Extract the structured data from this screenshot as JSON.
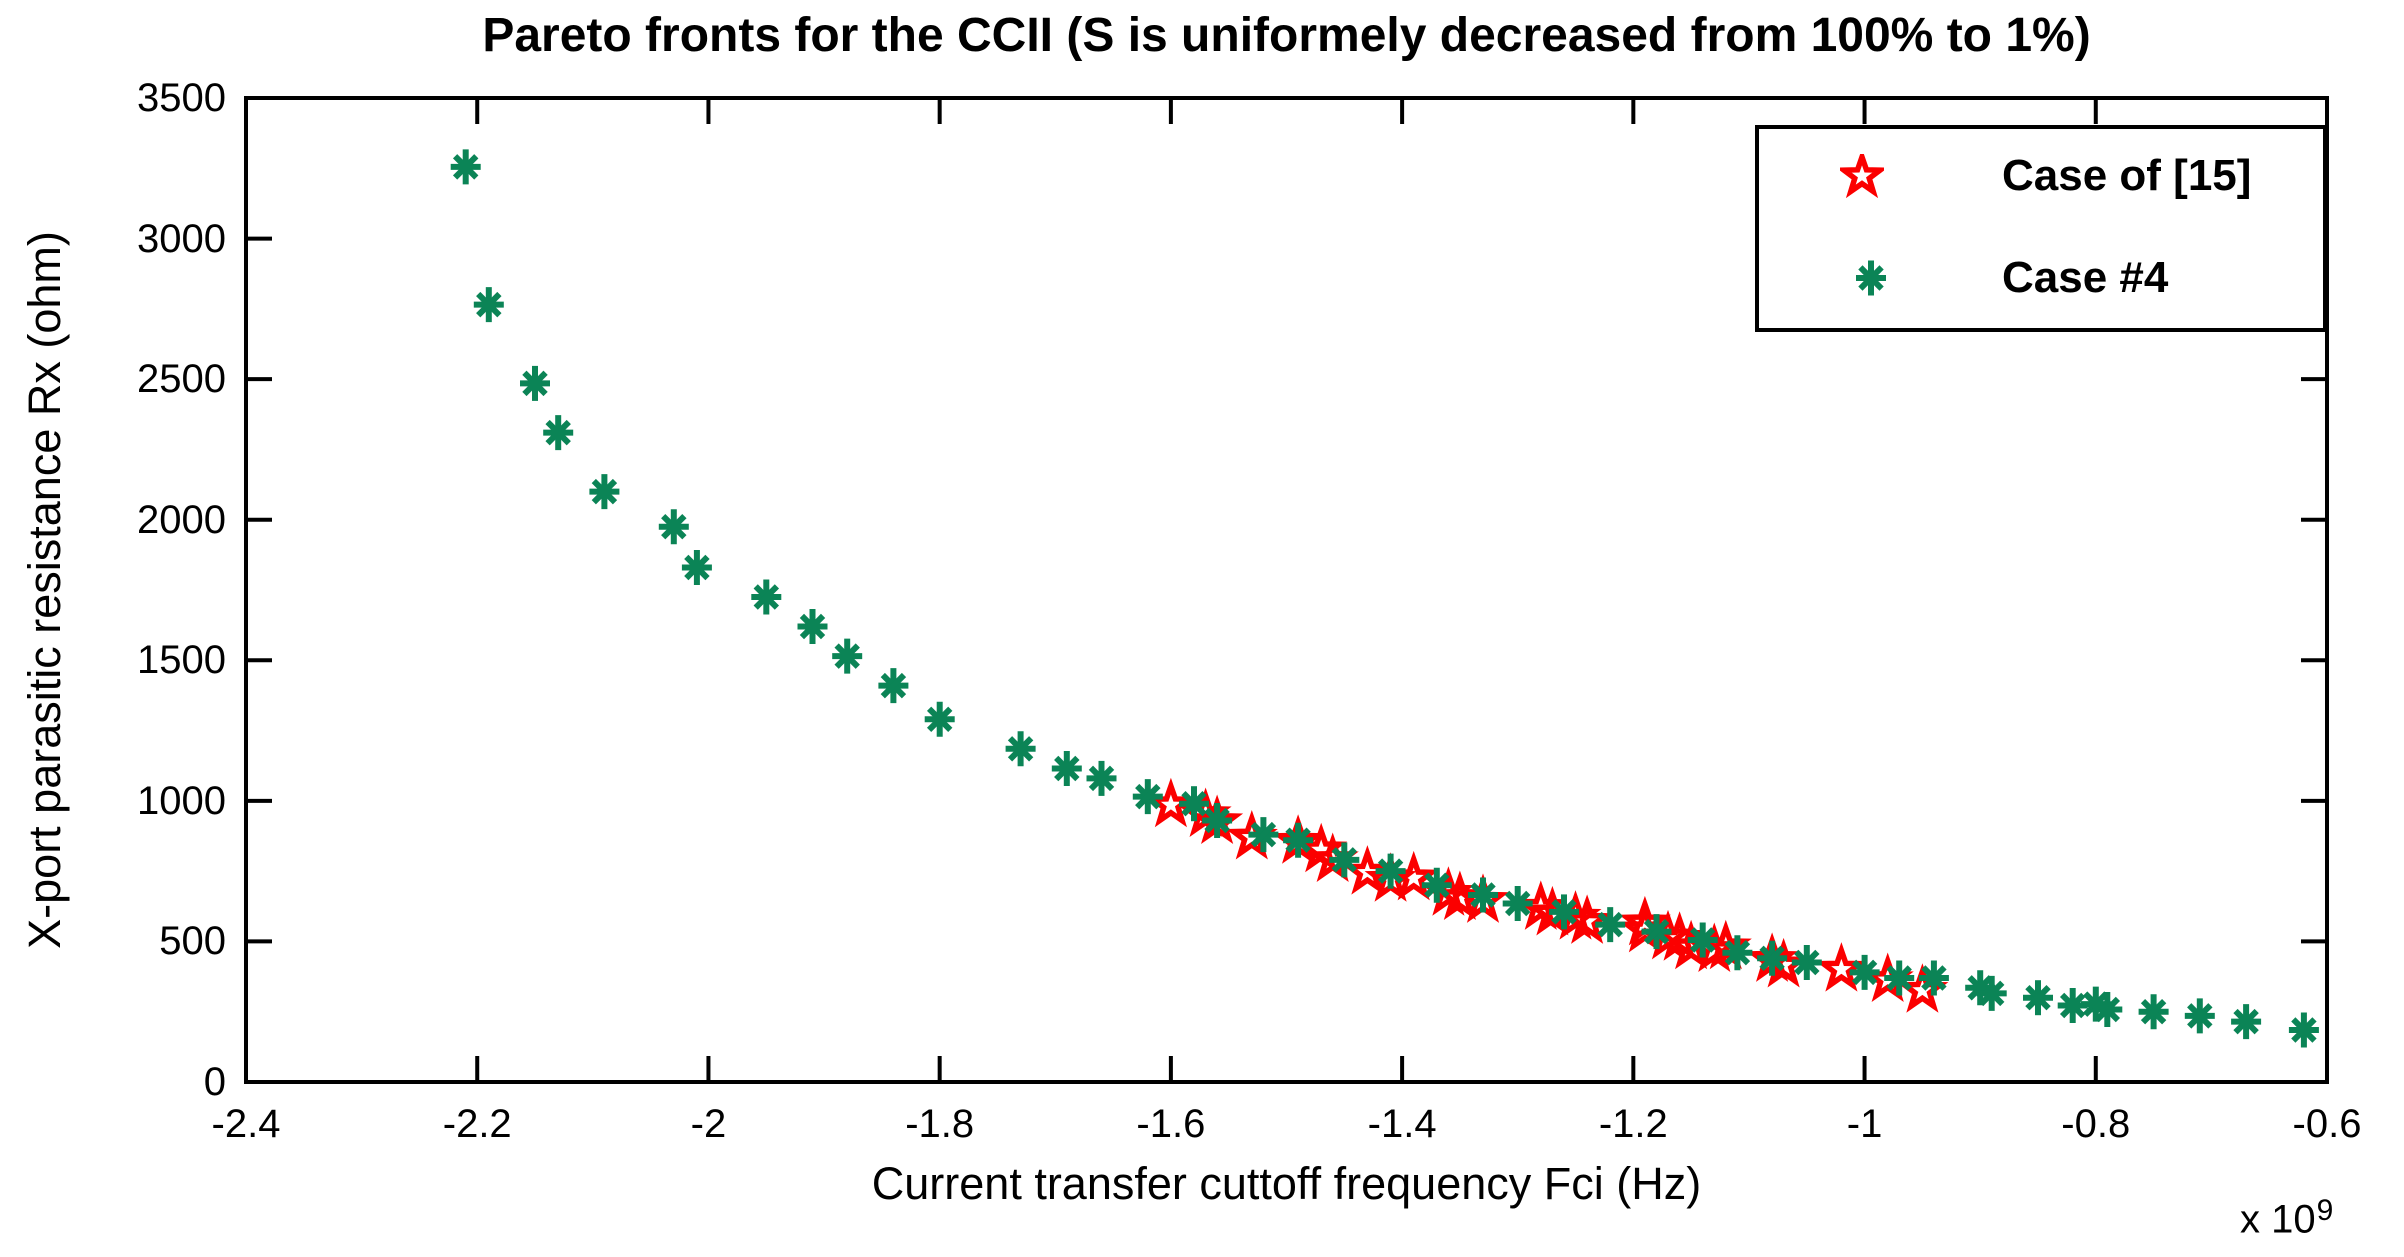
{
  "figure": {
    "background_color": "#ffffff",
    "frame_color": "#000000"
  },
  "chart_data": {
    "type": "scatter",
    "title": "Pareto fronts for the CCII (S is uniformely decreased from 100% to 1%)",
    "xlabel": "Current transfer cuttoff frequency Fci (Hz)",
    "ylabel": "X-port parasitic resistance Rx (ohm)",
    "x_multiplier_prefix": "x 10",
    "x_multiplier_exponent": "9",
    "xlim": [
      -2.4,
      -0.6
    ],
    "ylim": [
      0,
      3500
    ],
    "xticks": [
      -2.4,
      -2.2,
      -2,
      -1.8,
      -1.6,
      -1.4,
      -1.2,
      -1,
      -0.8,
      -0.6
    ],
    "xtick_labels": [
      "-2.4",
      "-2.2",
      "-2",
      "-1.8",
      "-1.6",
      "-1.4",
      "-1.2",
      "-1",
      "-0.8",
      "-0.6"
    ],
    "yticks": [
      0,
      500,
      1000,
      1500,
      2000,
      2500,
      3000,
      3500
    ],
    "ytick_labels": [
      "0",
      "500",
      "1000",
      "1500",
      "2000",
      "2500",
      "3000",
      "3500"
    ],
    "grid": false,
    "legend": {
      "position": "northeast",
      "entries": [
        {
          "label": "Case of [15]",
          "marker": "pentagram",
          "color": "#fb0000"
        },
        {
          "label": "Case #4",
          "marker": "asterisk",
          "color": "#0b8456"
        }
      ]
    },
    "series": [
      {
        "name": "Case of [15]",
        "marker": "pentagram",
        "color": "#fb0000",
        "points": [
          [
            -1.6,
            985
          ],
          [
            -1.57,
            950
          ],
          [
            -1.56,
            925
          ],
          [
            -1.53,
            870
          ],
          [
            -1.49,
            855
          ],
          [
            -1.47,
            825
          ],
          [
            -1.46,
            790
          ],
          [
            -1.43,
            745
          ],
          [
            -1.41,
            720
          ],
          [
            -1.39,
            725
          ],
          [
            -1.36,
            670
          ],
          [
            -1.35,
            655
          ],
          [
            -1.33,
            645
          ],
          [
            -1.28,
            620
          ],
          [
            -1.27,
            600
          ],
          [
            -1.25,
            585
          ],
          [
            -1.24,
            570
          ],
          [
            -1.19,
            565
          ],
          [
            -1.19,
            540
          ],
          [
            -1.17,
            515
          ],
          [
            -1.16,
            510
          ],
          [
            -1.15,
            480
          ],
          [
            -1.13,
            470
          ],
          [
            -1.12,
            480
          ],
          [
            -1.08,
            435
          ],
          [
            -1.07,
            415
          ],
          [
            -1.02,
            400
          ],
          [
            -0.98,
            363
          ],
          [
            -0.95,
            325
          ]
        ]
      },
      {
        "name": "Case #4",
        "marker": "asterisk",
        "color": "#0b8456",
        "points": [
          [
            -2.21,
            3255
          ],
          [
            -2.19,
            2765
          ],
          [
            -2.15,
            2485
          ],
          [
            -2.13,
            2310
          ],
          [
            -2.09,
            2100
          ],
          [
            -2.03,
            1975
          ],
          [
            -2.01,
            1830
          ],
          [
            -1.95,
            1725
          ],
          [
            -1.91,
            1620
          ],
          [
            -1.88,
            1515
          ],
          [
            -1.84,
            1410
          ],
          [
            -1.8,
            1290
          ],
          [
            -1.73,
            1185
          ],
          [
            -1.69,
            1115
          ],
          [
            -1.66,
            1080
          ],
          [
            -1.62,
            1015
          ],
          [
            -1.58,
            990
          ],
          [
            -1.56,
            930
          ],
          [
            -1.52,
            880
          ],
          [
            -1.49,
            860
          ],
          [
            -1.45,
            790
          ],
          [
            -1.41,
            750
          ],
          [
            -1.37,
            700
          ],
          [
            -1.33,
            665
          ],
          [
            -1.3,
            635
          ],
          [
            -1.26,
            605
          ],
          [
            -1.22,
            560
          ],
          [
            -1.18,
            535
          ],
          [
            -1.14,
            505
          ],
          [
            -1.11,
            460
          ],
          [
            -1.08,
            440
          ],
          [
            -1.05,
            425
          ],
          [
            -1.0,
            390
          ],
          [
            -0.97,
            370
          ],
          [
            -0.94,
            370
          ],
          [
            -0.9,
            335
          ],
          [
            -0.89,
            315
          ],
          [
            -0.85,
            300
          ],
          [
            -0.82,
            272
          ],
          [
            -0.8,
            277
          ],
          [
            -0.79,
            258
          ],
          [
            -0.75,
            250
          ],
          [
            -0.71,
            235
          ],
          [
            -0.67,
            215
          ],
          [
            -0.62,
            185
          ]
        ]
      }
    ]
  }
}
